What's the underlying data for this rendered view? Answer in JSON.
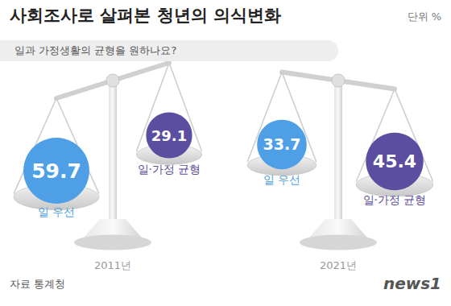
{
  "chart_data": {
    "type": "bubble",
    "title": "사회조사로 살펴본 청년의 의식변화",
    "subtitle": "일과 가정생활의 균형을 원하나요?",
    "unit": "단위 %",
    "source": "자료 통계청",
    "credit": "news1",
    "categories": [
      "2011년",
      "2021년"
    ],
    "series": [
      {
        "name": "일 우선",
        "color": "#4e9fe6",
        "values": [
          59.7,
          33.7
        ]
      },
      {
        "name": "일·가정 균형",
        "color": "#5b4da0",
        "values": [
          29.1,
          45.4
        ]
      }
    ],
    "data_labels": true,
    "tick_labels": "x"
  }
}
